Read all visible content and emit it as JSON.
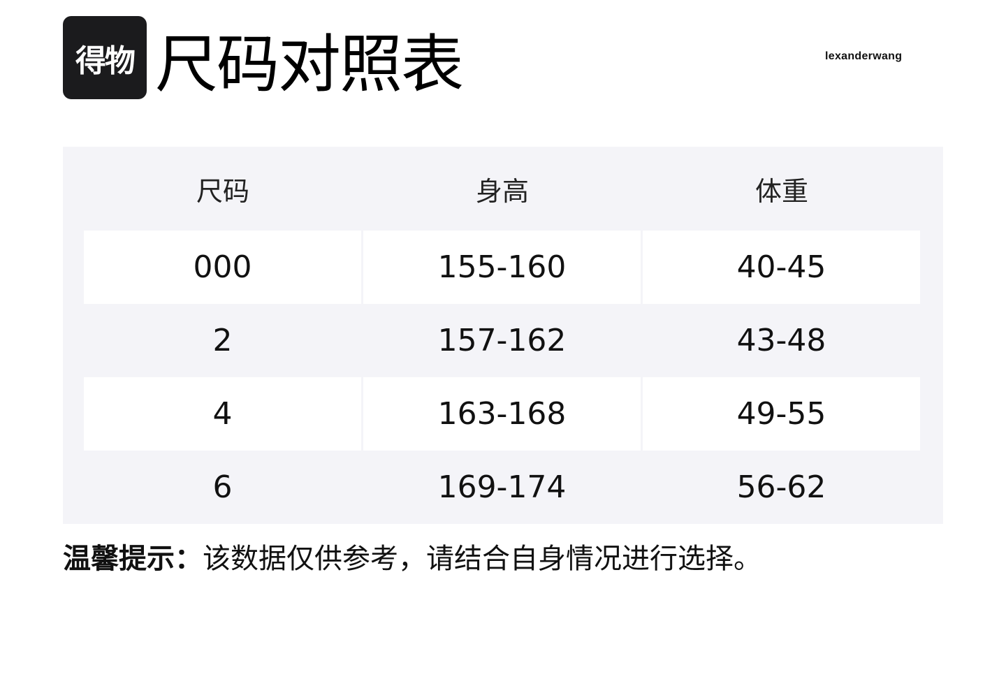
{
  "logo": {
    "text": "得物"
  },
  "title": "尺码对照表",
  "brand": "lexanderwang",
  "table": {
    "headers": [
      "尺码",
      "身高",
      "体重"
    ],
    "rows": [
      [
        "000",
        "155-160",
        "40-45"
      ],
      [
        "2",
        "157-162",
        "43-48"
      ],
      [
        "4",
        "163-168",
        "49-55"
      ],
      [
        "6",
        "169-174",
        "56-62"
      ]
    ]
  },
  "note": {
    "label": "温馨提示：",
    "text": "该数据仅供参考，请结合自身情况进行选择。"
  }
}
